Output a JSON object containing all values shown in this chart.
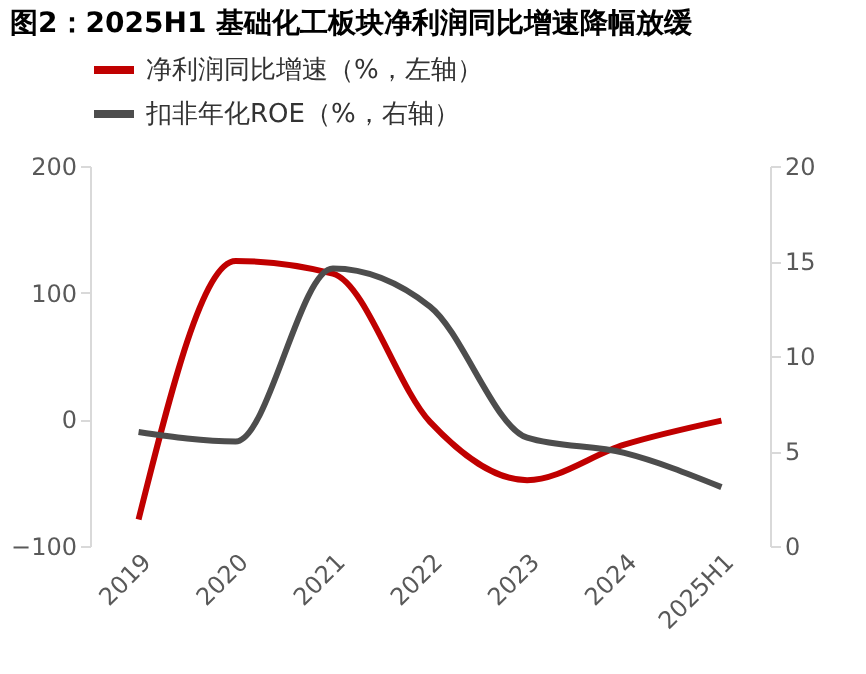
{
  "chart_data": {
    "type": "line",
    "title": "图2：2025H1 基础化工板块净利润同比增速降幅放缓",
    "categories": [
      "2019",
      "2020",
      "2021",
      "2022",
      "2023",
      "2024",
      "2025H1"
    ],
    "series": [
      {
        "name": "净利润同比增速（%，左轴）",
        "color": "#c00000",
        "values": [
          -79,
          125,
          115,
          -2,
          -48,
          -20,
          -1
        ]
      },
      {
        "name": "扣非年化ROE（%，右轴）",
        "color": "#4d4d4d",
        "axis": "y2",
        "values": [
          6.0,
          5.5,
          14.6,
          12.6,
          5.7,
          4.9,
          3.1
        ]
      }
    ],
    "ylim": [
      -100,
      200
    ],
    "yticks": [
      -100,
      0,
      100,
      200
    ],
    "y2lim": [
      0,
      20
    ],
    "y2ticks": [
      0,
      5,
      10,
      15,
      20
    ],
    "grid": false,
    "legend": "top",
    "marker": "none",
    "line_style": "solid"
  }
}
